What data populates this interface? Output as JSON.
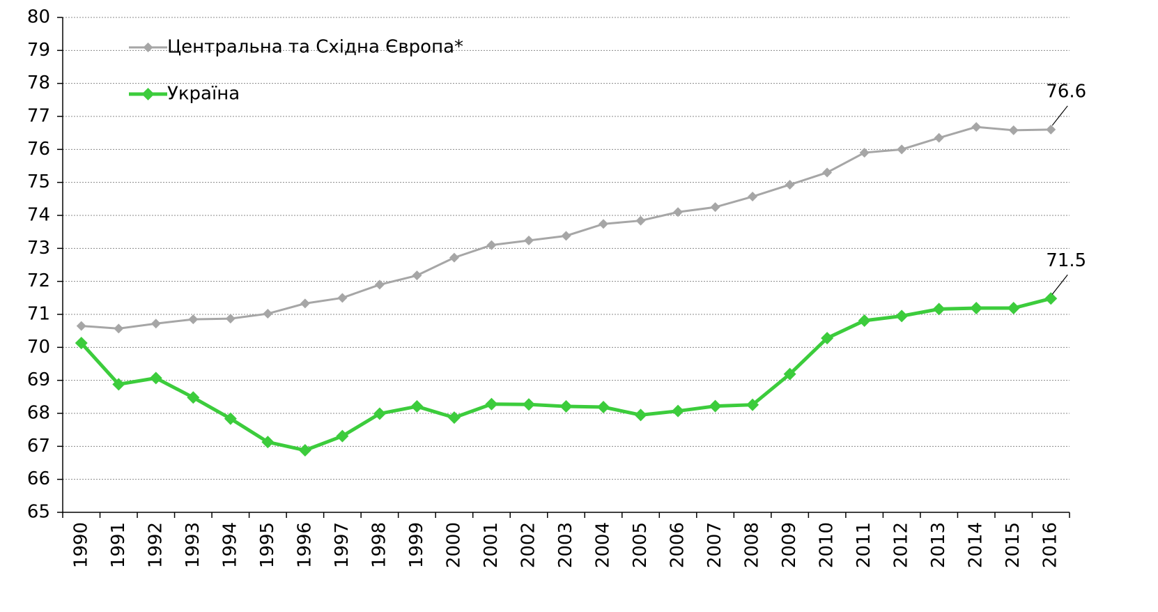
{
  "chart_data": {
    "type": "line",
    "categories": [
      "1990",
      "1991",
      "1992",
      "1993",
      "1994",
      "1995",
      "1996",
      "1997",
      "1998",
      "1999",
      "2000",
      "2001",
      "2002",
      "2003",
      "2004",
      "2005",
      "2006",
      "2007",
      "2008",
      "2009",
      "2010",
      "2011",
      "2012",
      "2013",
      "2014",
      "2015",
      "2016"
    ],
    "series": [
      {
        "name": "Центральна та Східна Європа*",
        "color": "#a6a6a6",
        "values": [
          70.65,
          70.57,
          70.72,
          70.85,
          70.87,
          71.02,
          71.33,
          71.5,
          71.9,
          72.18,
          72.72,
          73.1,
          73.24,
          73.38,
          73.74,
          73.84,
          74.1,
          74.25,
          74.57,
          74.93,
          75.3,
          75.9,
          76.0,
          76.35,
          76.68,
          76.58,
          76.6
        ],
        "value_labels": [
          null,
          null,
          null,
          null,
          null,
          null,
          null,
          null,
          null,
          null,
          null,
          null,
          null,
          null,
          null,
          null,
          null,
          null,
          null,
          null,
          null,
          null,
          null,
          null,
          null,
          null,
          "76.6"
        ]
      },
      {
        "name": "Україна",
        "color": "#3ccc3c",
        "values": [
          70.13,
          68.88,
          69.07,
          68.48,
          67.84,
          67.13,
          66.88,
          67.31,
          67.99,
          68.21,
          67.87,
          68.28,
          68.27,
          68.21,
          68.19,
          67.95,
          68.07,
          68.22,
          68.26,
          69.19,
          70.28,
          70.81,
          70.95,
          71.16,
          71.19,
          71.19,
          71.48
        ],
        "value_labels": [
          null,
          null,
          null,
          null,
          null,
          null,
          null,
          null,
          null,
          null,
          null,
          null,
          null,
          null,
          null,
          null,
          null,
          null,
          null,
          null,
          null,
          null,
          null,
          null,
          null,
          null,
          "71.5"
        ]
      }
    ],
    "ylim": [
      65,
      80
    ],
    "yticks": [
      65,
      66,
      67,
      68,
      69,
      70,
      71,
      72,
      73,
      74,
      75,
      76,
      77,
      78,
      79,
      80
    ],
    "grid": true
  }
}
